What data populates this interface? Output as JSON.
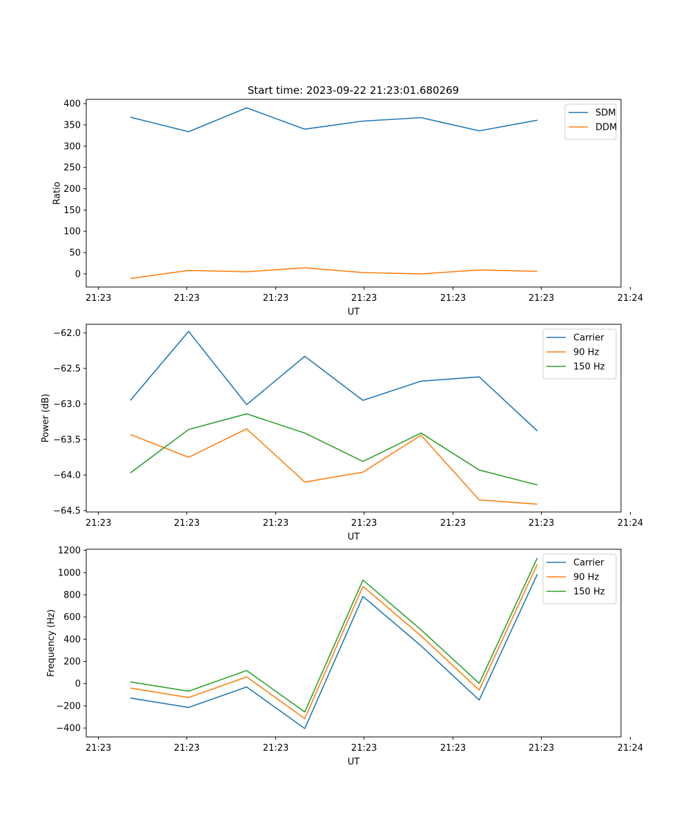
{
  "figure_title": "Start time: 2023-09-22 21:23:01.680269",
  "colors": {
    "blue": "#1f77b4",
    "orange": "#ff7f0e",
    "green": "#2ca02c"
  },
  "chart_data": [
    {
      "type": "line",
      "title": "Start time: 2023-09-22 21:23:01.680269",
      "xlabel": "UT",
      "ylabel": "Ratio",
      "x_tick_labels": [
        "21:23",
        "21:23",
        "21:23",
        "21:23",
        "21:23",
        "21:23",
        "21:24"
      ],
      "x": [
        1,
        2,
        3,
        4,
        5,
        6,
        7,
        8
      ],
      "xlim": [
        0.24,
        9.44
      ],
      "x_ticks": [
        0.45,
        1.97,
        3.5,
        5.02,
        6.55,
        8.07,
        9.6
      ],
      "ylim": [
        -31,
        410
      ],
      "y_ticks": [
        0,
        50,
        100,
        150,
        200,
        250,
        300,
        350,
        400
      ],
      "y_tick_labels": [
        "0",
        "50",
        "100",
        "150",
        "200",
        "250",
        "300",
        "350",
        "400"
      ],
      "legend": "top-right",
      "series": [
        {
          "name": "SDM",
          "color": "#1f77b4",
          "values": [
            368,
            334,
            390,
            340,
            359,
            367,
            336,
            361
          ]
        },
        {
          "name": "DDM",
          "color": "#ff7f0e",
          "values": [
            -11,
            8,
            5,
            14,
            3,
            0,
            9,
            6
          ]
        }
      ]
    },
    {
      "type": "line",
      "title": "",
      "xlabel": "UT",
      "ylabel": "Power (dB)",
      "x_tick_labels": [
        "21:23",
        "21:23",
        "21:23",
        "21:23",
        "21:23",
        "21:23",
        "21:24"
      ],
      "x": [
        1,
        2,
        3,
        4,
        5,
        6,
        7,
        8
      ],
      "xlim": [
        0.24,
        9.44
      ],
      "x_ticks": [
        0.45,
        1.97,
        3.5,
        5.02,
        6.55,
        8.07,
        9.6
      ],
      "ylim": [
        -64.52,
        -61.88
      ],
      "y_ticks": [
        -64.5,
        -64.0,
        -63.5,
        -63.0,
        -62.5,
        -62.0
      ],
      "y_tick_labels": [
        "−64.5",
        "−64.0",
        "−63.5",
        "−63.0",
        "−62.5",
        "−62.0"
      ],
      "legend": "top-right",
      "series": [
        {
          "name": "Carrier",
          "color": "#1f77b4",
          "values": [
            -62.95,
            -61.98,
            -63.01,
            -62.33,
            -62.95,
            -62.68,
            -62.62,
            -63.38
          ]
        },
        {
          "name": "90 Hz",
          "color": "#ff7f0e",
          "values": [
            -63.43,
            -63.75,
            -63.35,
            -64.1,
            -63.96,
            -63.44,
            -64.35,
            -64.41
          ]
        },
        {
          "name": "150 Hz",
          "color": "#2ca02c",
          "values": [
            -63.97,
            -63.36,
            -63.14,
            -63.41,
            -63.81,
            -63.41,
            -63.93,
            -64.14
          ]
        }
      ]
    },
    {
      "type": "line",
      "title": "",
      "xlabel": "UT",
      "ylabel": "Frequency (Hz)",
      "x_tick_labels": [
        "21:23",
        "21:23",
        "21:23",
        "21:23",
        "21:23",
        "21:23",
        "21:24"
      ],
      "x": [
        1,
        2,
        3,
        4,
        5,
        6,
        7,
        8
      ],
      "xlim": [
        0.24,
        9.44
      ],
      "x_ticks": [
        0.45,
        1.97,
        3.5,
        5.02,
        6.55,
        8.07,
        9.6
      ],
      "ylim": [
        -480,
        1210
      ],
      "y_ticks": [
        -400,
        -200,
        0,
        200,
        400,
        600,
        800,
        1000,
        1200
      ],
      "y_tick_labels": [
        "−400",
        "−200",
        "0",
        "200",
        "400",
        "600",
        "800",
        "1000",
        "1200"
      ],
      "legend": "top-right",
      "series": [
        {
          "name": "Carrier",
          "color": "#1f77b4",
          "values": [
            -130,
            -215,
            -30,
            -405,
            785,
            340,
            -148,
            985
          ]
        },
        {
          "name": "90 Hz",
          "color": "#ff7f0e",
          "values": [
            -40,
            -125,
            60,
            -315,
            875,
            430,
            -58,
            1075
          ]
        },
        {
          "name": "150 Hz",
          "color": "#2ca02c",
          "values": [
            15,
            -68,
            118,
            -255,
            932,
            485,
            2,
            1132
          ]
        }
      ]
    }
  ]
}
